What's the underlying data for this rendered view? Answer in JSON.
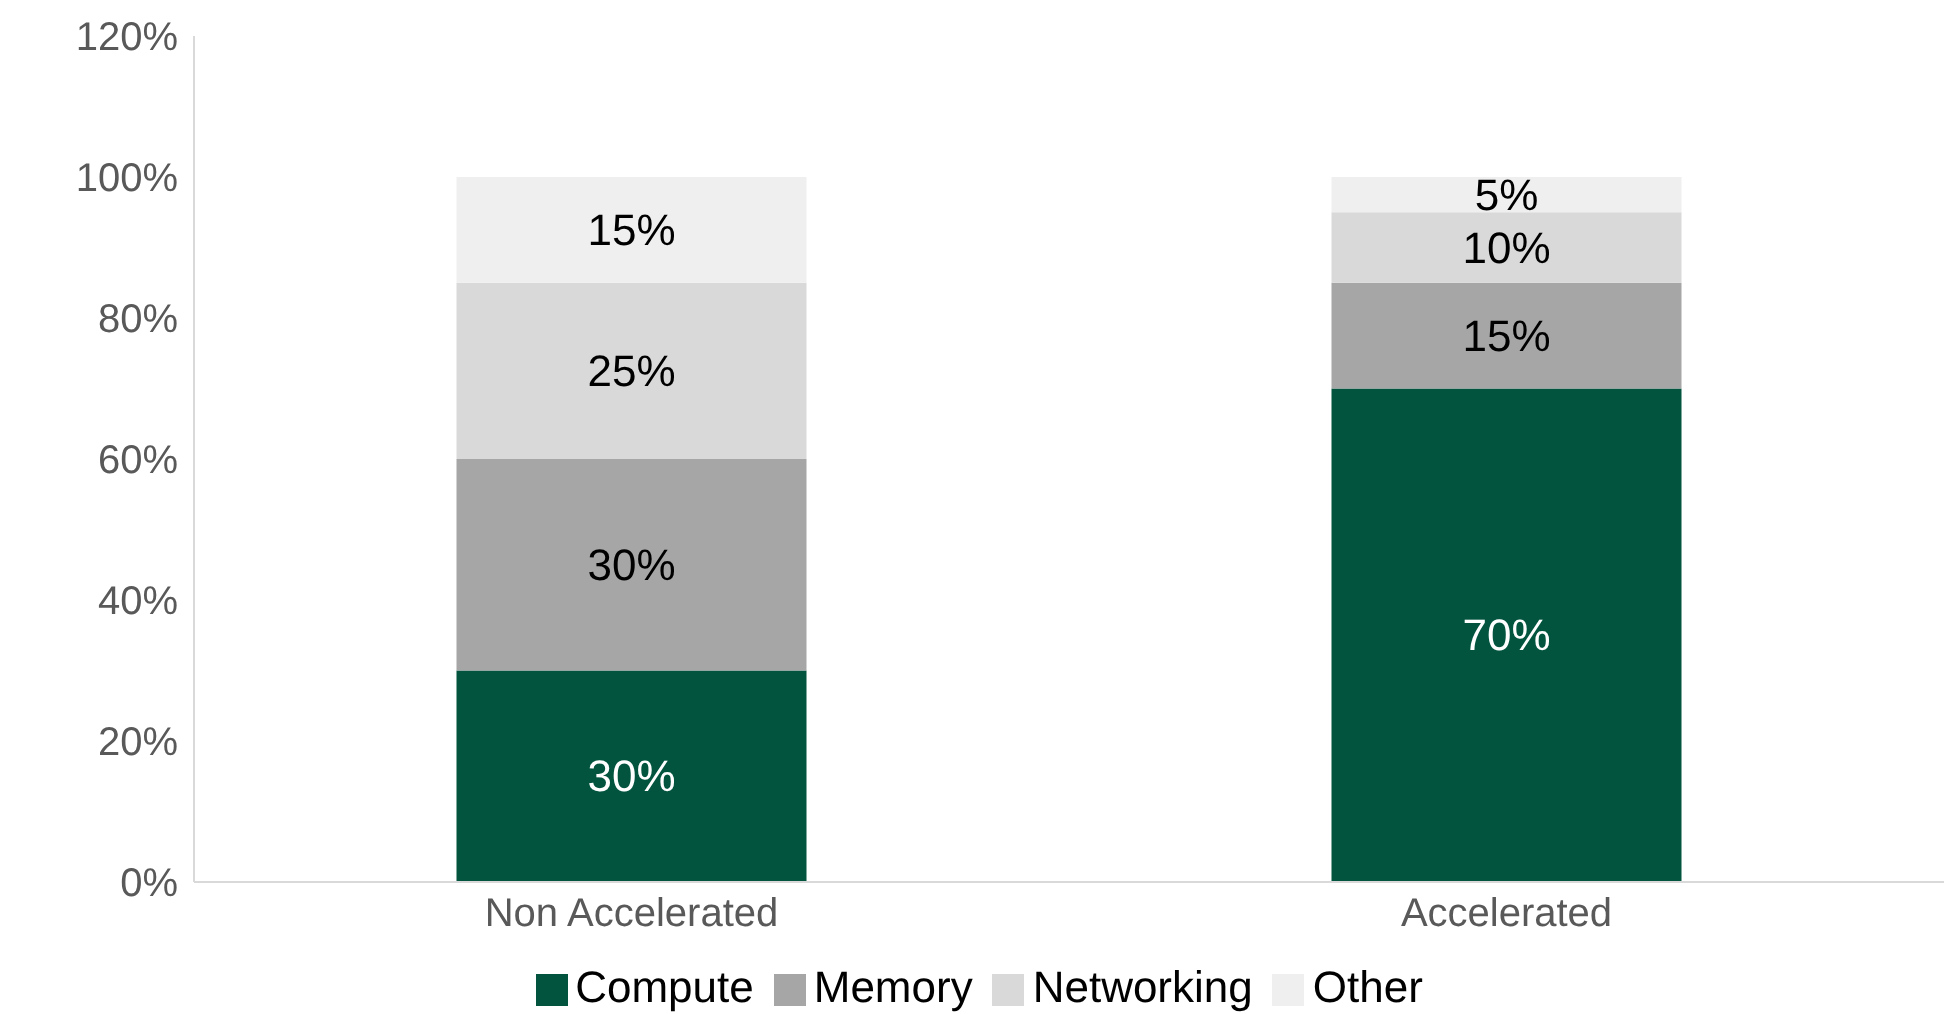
{
  "chart_data": {
    "type": "bar",
    "stacked": true,
    "categories": [
      "Non Accelerated",
      "Accelerated"
    ],
    "series": [
      {
        "name": "Compute",
        "color": "#03543f",
        "values": [
          30,
          70
        ],
        "value_labels": [
          "30%",
          "70%"
        ]
      },
      {
        "name": "Memory",
        "color": "#a6a6a6",
        "values": [
          30,
          15
        ],
        "value_labels": [
          "30%",
          "15%"
        ]
      },
      {
        "name": "Networking",
        "color": "#d9d9d9",
        "values": [
          25,
          10
        ],
        "value_labels": [
          "25%",
          "10%"
        ]
      },
      {
        "name": "Other",
        "color": "#efefef",
        "values": [
          15,
          5
        ],
        "value_labels": [
          "15%",
          "5%"
        ]
      }
    ],
    "ylim": [
      0,
      120
    ],
    "yticks": [
      {
        "value": 0,
        "label": "0%"
      },
      {
        "value": 20,
        "label": "20%"
      },
      {
        "value": 40,
        "label": "40%"
      },
      {
        "value": 60,
        "label": "60%"
      },
      {
        "value": 80,
        "label": "80%"
      },
      {
        "value": 100,
        "label": "100%"
      },
      {
        "value": 120,
        "label": "120%"
      }
    ],
    "grid": false,
    "legend": "bottom"
  }
}
